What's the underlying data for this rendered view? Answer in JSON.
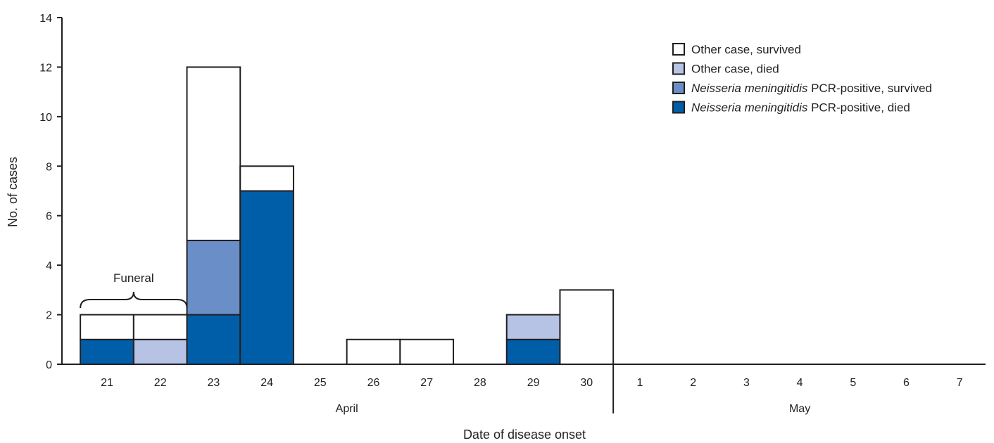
{
  "chart_data": {
    "type": "bar",
    "stacked": true,
    "xlabel": "Date of disease onset",
    "ylabel": "No. of cases",
    "ylim": [
      0,
      14
    ],
    "yticks": [
      0,
      2,
      4,
      6,
      8,
      10,
      12,
      14
    ],
    "grid": false,
    "legend_position": "top-right",
    "categories": [
      "21",
      "22",
      "23",
      "24",
      "25",
      "26",
      "27",
      "28",
      "29",
      "30",
      "1",
      "2",
      "3",
      "4",
      "5",
      "6",
      "7"
    ],
    "month_groups": [
      {
        "label": "April",
        "start": 0,
        "end": 9
      },
      {
        "label": "May",
        "start": 10,
        "end": 16
      }
    ],
    "series": [
      {
        "key": "nm_died",
        "italic": "Neisseria meningitidis",
        "rest": " PCR-positive, died",
        "color": "#005ea8",
        "values": [
          1,
          0,
          2,
          7,
          0,
          0,
          0,
          0,
          1,
          0,
          0,
          0,
          0,
          0,
          0,
          0,
          0
        ]
      },
      {
        "key": "nm_survived",
        "italic": "Neisseria meningitidis",
        "rest": " PCR-positive, survived",
        "color": "#6a8ec7",
        "values": [
          0,
          0,
          3,
          0,
          0,
          0,
          0,
          0,
          0,
          0,
          0,
          0,
          0,
          0,
          0,
          0,
          0
        ]
      },
      {
        "key": "other_died",
        "italic": "",
        "rest": "Other case, died",
        "color": "#b6c3e4",
        "values": [
          0,
          1,
          0,
          0,
          0,
          0,
          0,
          0,
          1,
          0,
          0,
          0,
          0,
          0,
          0,
          0,
          0
        ]
      },
      {
        "key": "other_survived",
        "italic": "",
        "rest": "Other case, survived",
        "color": "#ffffff",
        "values": [
          1,
          1,
          7,
          1,
          0,
          1,
          1,
          0,
          0,
          3,
          0,
          0,
          0,
          0,
          0,
          0,
          0
        ]
      }
    ],
    "legend_order": [
      "other_survived",
      "other_died",
      "nm_survived",
      "nm_died"
    ],
    "annotations": [
      {
        "text": "Funeral",
        "span": [
          "21",
          "22"
        ]
      }
    ]
  }
}
